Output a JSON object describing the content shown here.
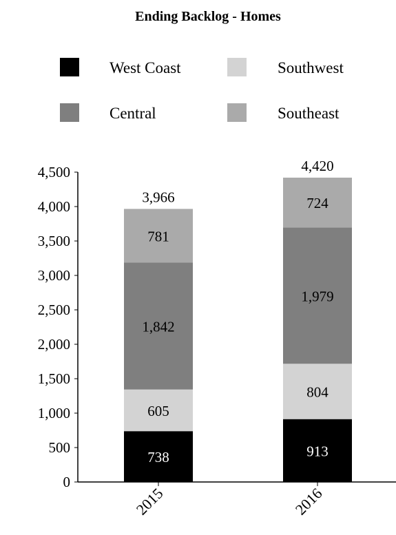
{
  "chart_data": {
    "type": "bar",
    "stacked": true,
    "title": "Ending Backlog - Homes",
    "categories": [
      "2015",
      "2016"
    ],
    "series": [
      {
        "name": "West Coast",
        "color": "#000000",
        "label_color": "#ffffff",
        "values": [
          738,
          913
        ],
        "labels": [
          "738",
          "913"
        ]
      },
      {
        "name": "Southwest",
        "color": "#d3d3d3",
        "label_color": "#000000",
        "values": [
          605,
          804
        ],
        "labels": [
          "605",
          "804"
        ]
      },
      {
        "name": "Central",
        "color": "#7f7f7f",
        "label_color": "#000000",
        "values": [
          1842,
          1979
        ],
        "labels": [
          "1,842",
          "1,979"
        ]
      },
      {
        "name": "Southeast",
        "color": "#aaaaaa",
        "label_color": "#000000",
        "values": [
          781,
          724
        ],
        "labels": [
          "781",
          "724"
        ]
      }
    ],
    "totals": [
      3966,
      4420
    ],
    "total_labels": [
      "3,966",
      "4,420"
    ],
    "ylim": [
      0,
      4500
    ],
    "yticks": [
      0,
      500,
      1000,
      1500,
      2000,
      2500,
      3000,
      3500,
      4000,
      4500
    ],
    "ytick_labels": [
      "0",
      "500",
      "1,000",
      "1,500",
      "2,000",
      "2,500",
      "3,000",
      "3,500",
      "4,000",
      "4,500"
    ],
    "legend_position": "top",
    "grid": false,
    "xlabel": "",
    "ylabel": ""
  }
}
